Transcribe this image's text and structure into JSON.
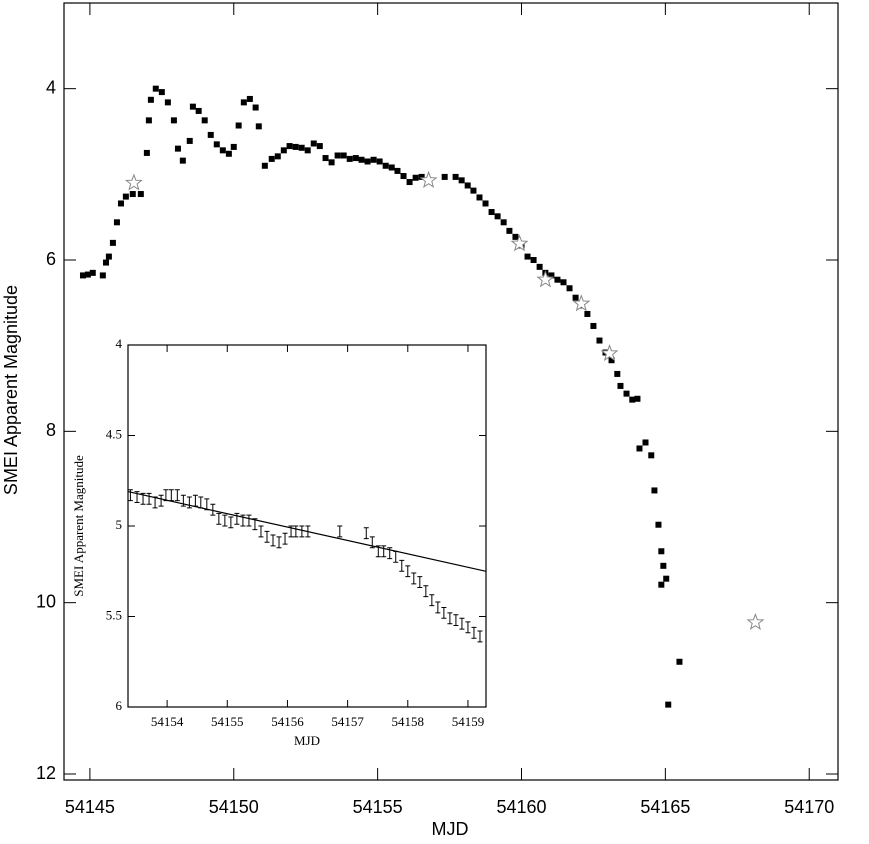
{
  "chart_data": [
    {
      "type": "scatter",
      "xlabel": "MJD",
      "ylabel": "SMEI Apparent Magnitude",
      "xlim": [
        54144.1,
        54171
      ],
      "ylim": [
        12.07,
        3
      ],
      "xticks": [
        54145,
        54150,
        54155,
        54160,
        54165,
        54170
      ],
      "yticks": [
        4,
        6,
        8,
        10,
        12
      ],
      "series": [
        {
          "color": "#000000",
          "marker": "square",
          "x": [
            54144.76,
            54144.93,
            54145.1,
            54145.45,
            54145.56,
            54145.66,
            54145.8,
            54145.94,
            54146.08,
            54146.25,
            54146.49,
            54146.77,
            54146.98,
            54147.05,
            54147.12,
            54147.29,
            54147.5,
            54147.71,
            54147.92,
            54148.06,
            54148.23,
            54148.47,
            54148.58,
            54148.78,
            54148.99,
            54149.2,
            54149.41,
            54149.62,
            54149.83,
            54150.0,
            54150.17,
            54150.35,
            54150.56,
            54150.76,
            54150.87,
            54151.08,
            54151.32,
            54151.53,
            54151.74,
            54151.94,
            54152.15,
            54152.36,
            54152.57,
            54152.78,
            54152.99,
            54153.19,
            54153.4,
            54153.61,
            54153.82,
            54154.03,
            54154.24,
            54154.44,
            54154.65,
            54154.86,
            54155.07,
            54155.28,
            54155.49,
            54155.69,
            54155.9,
            54156.11,
            54156.32,
            54156.53,
            54157.33,
            54157.71,
            54157.92,
            54158.13,
            54158.33,
            54158.54,
            54158.75,
            54158.96,
            54159.17,
            54159.38,
            54159.58,
            54159.79,
            54160.0,
            54160.21,
            54160.42,
            54160.63,
            54160.83,
            54161.04,
            54161.25,
            54161.46,
            54161.67,
            54161.88,
            54162.08,
            54162.29,
            54162.5,
            54162.71,
            54162.92,
            54163.13,
            54163.33,
            54163.44,
            54163.65,
            54163.85,
            54164.03,
            54164.1,
            54164.31,
            54164.51,
            54164.62,
            54164.76,
            54164.86,
            54164.93,
            54164.86,
            54165.03,
            54165.1,
            54165.49
          ],
          "values": [
            6.18,
            6.17,
            6.15,
            6.18,
            6.03,
            5.96,
            5.8,
            5.56,
            5.34,
            5.26,
            5.23,
            5.23,
            4.75,
            4.37,
            4.13,
            4.0,
            4.04,
            4.16,
            4.37,
            4.7,
            4.84,
            4.61,
            4.21,
            4.26,
            4.37,
            4.54,
            4.65,
            4.72,
            4.76,
            4.68,
            4.43,
            4.16,
            4.12,
            4.22,
            4.44,
            4.9,
            4.82,
            4.79,
            4.72,
            4.67,
            4.68,
            4.69,
            4.72,
            4.64,
            4.67,
            4.81,
            4.86,
            4.78,
            4.78,
            4.82,
            4.81,
            4.83,
            4.85,
            4.83,
            4.85,
            4.9,
            4.92,
            4.96,
            5.02,
            5.09,
            5.04,
            5.03,
            5.03,
            5.03,
            5.07,
            5.13,
            5.19,
            5.27,
            5.34,
            5.44,
            5.49,
            5.56,
            5.66,
            5.73,
            5.83,
            5.96,
            6.0,
            6.08,
            6.15,
            6.18,
            6.23,
            6.26,
            6.33,
            6.44,
            6.53,
            6.63,
            6.77,
            6.94,
            7.08,
            7.17,
            7.33,
            7.47,
            7.56,
            7.63,
            7.62,
            8.2,
            8.13,
            8.28,
            8.69,
            9.09,
            9.4,
            9.57,
            9.79,
            9.72,
            11.19,
            10.69
          ]
        },
        {
          "color": "#888888",
          "marker": "star",
          "x": [
            54146.53,
            54156.77,
            54159.93,
            54160.83,
            54162.08,
            54163.06,
            54168.13
          ],
          "values": [
            5.1,
            5.07,
            5.81,
            6.23,
            6.51,
            7.09,
            10.23
          ]
        }
      ]
    },
    {
      "type": "scatter",
      "xlabel": "MJD",
      "ylabel": "SMEI Apparent Magnitude",
      "xlim": [
        54153.35,
        54159.3
      ],
      "ylim": [
        6,
        4
      ],
      "xticks": [
        54154,
        54155,
        54156,
        54157,
        54158,
        54159
      ],
      "yticks": [
        4,
        4.5,
        5,
        5.5,
        6
      ],
      "series": [
        {
          "color": "#000000",
          "marker": "errorbar",
          "x": [
            54153.39,
            54153.5,
            54153.6,
            54153.7,
            54153.8,
            54153.9,
            54153.98,
            54154.07,
            54154.17,
            54154.27,
            54154.37,
            54154.47,
            54154.56,
            54154.66,
            54154.76,
            54154.86,
            54154.96,
            54155.06,
            54155.16,
            54155.26,
            54155.36,
            54155.46,
            54155.56,
            54155.66,
            54155.76,
            54155.86,
            54155.96,
            54156.06,
            54156.14,
            54156.24,
            54156.34,
            54156.87,
            54157.31,
            54157.41,
            54157.51,
            54157.6,
            54157.7,
            54157.8,
            54157.9,
            54158.0,
            54158.1,
            54158.2,
            54158.3,
            54158.4,
            54158.5,
            54158.6,
            54158.7,
            54158.8,
            54158.9,
            54159.0,
            54159.1,
            54159.2
          ],
          "values": [
            4.83,
            4.84,
            4.85,
            4.85,
            4.87,
            4.86,
            4.83,
            4.83,
            4.83,
            4.86,
            4.87,
            4.86,
            4.87,
            4.88,
            4.91,
            4.96,
            4.97,
            4.98,
            4.96,
            4.97,
            4.97,
            4.99,
            5.03,
            5.06,
            5.08,
            5.09,
            5.07,
            5.03,
            5.03,
            5.03,
            5.03,
            5.03,
            5.04,
            5.09,
            5.14,
            5.14,
            5.15,
            5.17,
            5.22,
            5.25,
            5.29,
            5.31,
            5.36,
            5.41,
            5.45,
            5.48,
            5.51,
            5.52,
            5.54,
            5.56,
            5.59,
            5.61
          ],
          "errors": [
            0.03,
            0.03,
            0.03,
            0.03,
            0.03,
            0.03,
            0.03,
            0.03,
            0.03,
            0.03,
            0.03,
            0.03,
            0.03,
            0.03,
            0.03,
            0.03,
            0.03,
            0.03,
            0.03,
            0.03,
            0.03,
            0.03,
            0.03,
            0.03,
            0.03,
            0.03,
            0.03,
            0.03,
            0.03,
            0.03,
            0.03,
            0.03,
            0.03,
            0.03,
            0.03,
            0.03,
            0.03,
            0.03,
            0.03,
            0.03,
            0.03,
            0.03,
            0.03,
            0.03,
            0.03,
            0.03,
            0.03,
            0.03,
            0.03,
            0.03,
            0.03,
            0.03
          ]
        }
      ],
      "fit_line": {
        "color": "#000000",
        "x": [
          54153.35,
          54159.3
        ],
        "values": [
          4.81,
          5.25
        ]
      }
    }
  ]
}
